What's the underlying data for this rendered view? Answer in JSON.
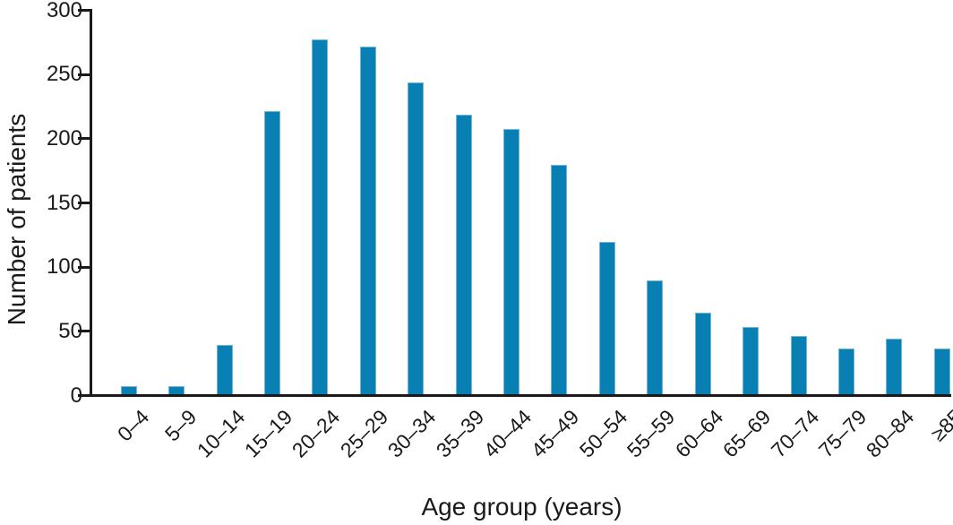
{
  "chart_data": {
    "type": "bar",
    "title": "",
    "xlabel": "Age group (years)",
    "ylabel": "Number of patients",
    "categories": [
      "0–4",
      "5–9",
      "10–14",
      "15–19",
      "20–24",
      "25–29",
      "30–34",
      "35–39",
      "40–44",
      "45–49",
      "50–54",
      "55–59",
      "60–64",
      "65–69",
      "70–74",
      "75–79",
      "80–84",
      "≥85"
    ],
    "values": [
      8,
      8,
      40,
      222,
      278,
      272,
      244,
      219,
      208,
      180,
      120,
      90,
      65,
      54,
      47,
      37,
      45,
      37
    ],
    "ylim": [
      0,
      300
    ],
    "yticks": [
      0,
      50,
      100,
      150,
      200,
      250,
      300
    ],
    "grid": false,
    "legend": null,
    "x_tick_rotation_deg": 45,
    "bar_color": "#0880b4",
    "bar_edge_color": "#77b5d8",
    "axis_color": "#1a1a1a",
    "text_color": "#1a1a1a"
  }
}
